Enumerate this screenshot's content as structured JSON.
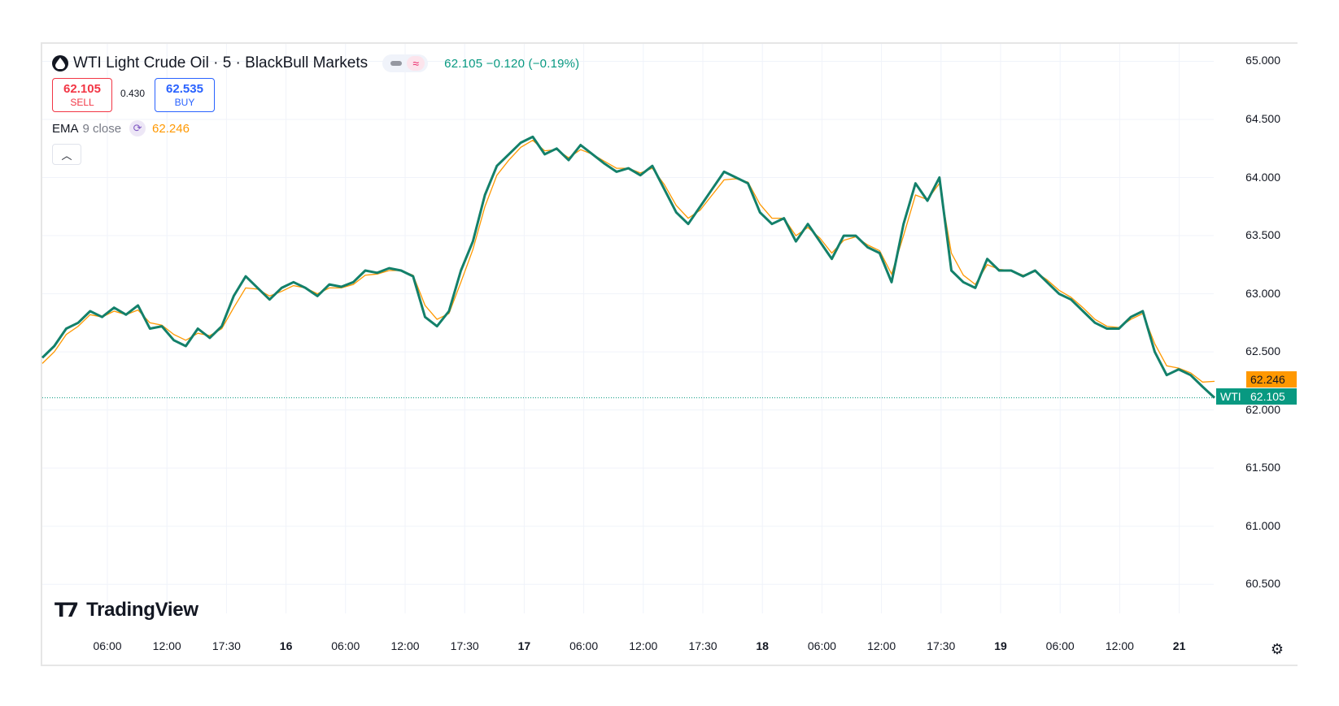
{
  "header": {
    "title": "WTI Light Crude Oil · 5 · BlackBull Markets",
    "last_price": "62.105",
    "change": "−0.120",
    "change_pct": "(−0.19%)",
    "status_icon": "waves-icon"
  },
  "trade": {
    "sell_price": "62.105",
    "sell_label": "SELL",
    "spread": "0.430",
    "buy_price": "62.535",
    "buy_label": "BUY"
  },
  "indicator": {
    "name": "EMA",
    "params": "9 close",
    "value": "62.246",
    "color": "#ff9800"
  },
  "logo": {
    "text": "TradingView"
  },
  "price_tags": {
    "ema": "62.246",
    "symbol": "WTI",
    "last": "62.105"
  },
  "colors": {
    "series": "#13806a",
    "ema": "#ff9800",
    "last_tag": "#089981",
    "sell": "#f23645",
    "buy": "#2962ff"
  },
  "chart_data": {
    "type": "line",
    "title": "WTI Light Crude Oil · 5 · BlackBull Markets",
    "y_ticks": [
      "65.000",
      "64.500",
      "64.000",
      "63.500",
      "63.000",
      "62.500",
      "62.000",
      "61.500",
      "61.000",
      "60.500"
    ],
    "ylim": [
      60.25,
      65.15
    ],
    "x_ticks": [
      {
        "label": "06:00",
        "bold": false
      },
      {
        "label": "12:00",
        "bold": false
      },
      {
        "label": "17:30",
        "bold": false
      },
      {
        "label": "16",
        "bold": true
      },
      {
        "label": "06:00",
        "bold": false
      },
      {
        "label": "12:00",
        "bold": false
      },
      {
        "label": "17:30",
        "bold": false
      },
      {
        "label": "17",
        "bold": true
      },
      {
        "label": "06:00",
        "bold": false
      },
      {
        "label": "12:00",
        "bold": false
      },
      {
        "label": "17:30",
        "bold": false
      },
      {
        "label": "18",
        "bold": true
      },
      {
        "label": "06:00",
        "bold": false
      },
      {
        "label": "12:00",
        "bold": false
      },
      {
        "label": "17:30",
        "bold": false
      },
      {
        "label": "19",
        "bold": true
      },
      {
        "label": "06:00",
        "bold": false
      },
      {
        "label": "12:00",
        "bold": false
      },
      {
        "label": "21",
        "bold": true
      }
    ],
    "grid": true,
    "series": [
      {
        "values": [
          62.45,
          62.55,
          62.7,
          62.75,
          62.85,
          62.8,
          62.88,
          62.82,
          62.9,
          62.7,
          62.72,
          62.6,
          62.55,
          62.7,
          62.62,
          62.72,
          62.98,
          63.15,
          63.05,
          62.95,
          63.05,
          63.1,
          63.05,
          62.98,
          63.08,
          63.06,
          63.1,
          63.2,
          63.18,
          63.22,
          63.2,
          63.15,
          62.8,
          62.72,
          62.85,
          63.2,
          63.45,
          63.85,
          64.1,
          64.2,
          64.3,
          64.35,
          64.2,
          64.25,
          64.15,
          64.28,
          64.2,
          64.12,
          64.05,
          64.08,
          64.02,
          64.1,
          63.9,
          63.7,
          63.6,
          63.75,
          63.9,
          64.05,
          64.0,
          63.95,
          63.7,
          63.6,
          63.65,
          63.45,
          63.6,
          63.45,
          63.3,
          63.5,
          63.5,
          63.4,
          63.35,
          63.1,
          63.6,
          63.95,
          63.8,
          64.0,
          63.2,
          63.1,
          63.05,
          63.3,
          63.2,
          63.2,
          63.15,
          63.2,
          63.1,
          63.0,
          62.95,
          62.85,
          62.75,
          62.7,
          62.7,
          62.8,
          62.85,
          62.5,
          62.3,
          62.35,
          62.3,
          62.2,
          62.105
        ]
      },
      {
        "name": "EMA 9 close",
        "values": [
          62.4,
          62.5,
          62.65,
          62.72,
          62.82,
          62.8,
          62.85,
          62.82,
          62.86,
          62.75,
          62.73,
          62.65,
          62.6,
          62.66,
          62.64,
          62.7,
          62.88,
          63.05,
          63.04,
          62.98,
          63.02,
          63.07,
          63.05,
          63.0,
          63.05,
          63.05,
          63.08,
          63.16,
          63.17,
          63.2,
          63.2,
          63.16,
          62.9,
          62.78,
          62.83,
          63.1,
          63.38,
          63.75,
          64.02,
          64.15,
          64.26,
          64.32,
          64.23,
          64.24,
          64.17,
          64.24,
          64.2,
          64.14,
          64.08,
          64.08,
          64.04,
          64.08,
          63.94,
          63.76,
          63.65,
          63.72,
          63.85,
          63.98,
          63.99,
          63.96,
          63.77,
          63.65,
          63.65,
          63.5,
          63.57,
          63.48,
          63.35,
          63.46,
          63.49,
          63.42,
          63.37,
          63.17,
          63.5,
          63.85,
          63.81,
          63.95,
          63.35,
          63.16,
          63.08,
          63.25,
          63.21,
          63.2,
          63.16,
          63.19,
          63.12,
          63.03,
          62.97,
          62.88,
          62.78,
          62.72,
          62.71,
          62.78,
          62.83,
          62.57,
          62.38,
          62.36,
          62.32,
          62.24,
          62.246
        ]
      }
    ]
  }
}
